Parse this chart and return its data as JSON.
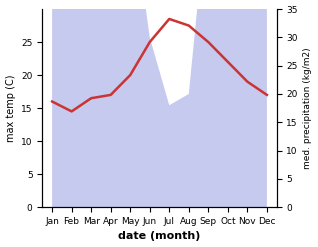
{
  "months": [
    "Jan",
    "Feb",
    "Mar",
    "Apr",
    "May",
    "Jun",
    "Jul",
    "Aug",
    "Sep",
    "Oct",
    "Nov",
    "Dec"
  ],
  "temp": [
    16.0,
    14.5,
    16.5,
    17.0,
    20.0,
    25.0,
    28.5,
    27.5,
    25.0,
    22.0,
    19.0,
    17.0
  ],
  "precip": [
    47,
    37,
    40,
    45,
    55,
    30,
    18,
    20,
    55,
    60,
    55,
    52
  ],
  "temp_color": "#cc3333",
  "precip_fill_color": "#c5caee",
  "temp_ylim": [
    0,
    30
  ],
  "precip_ylim": [
    0,
    35
  ],
  "temp_yticks": [
    0,
    5,
    10,
    15,
    20,
    25
  ],
  "precip_yticks": [
    0,
    5,
    10,
    15,
    20,
    25,
    30,
    35
  ],
  "ylabel_left": "max temp (C)",
  "ylabel_right": "med. precipitation (kg/m2)",
  "xlabel": "date (month)",
  "background_color": "#ffffff"
}
